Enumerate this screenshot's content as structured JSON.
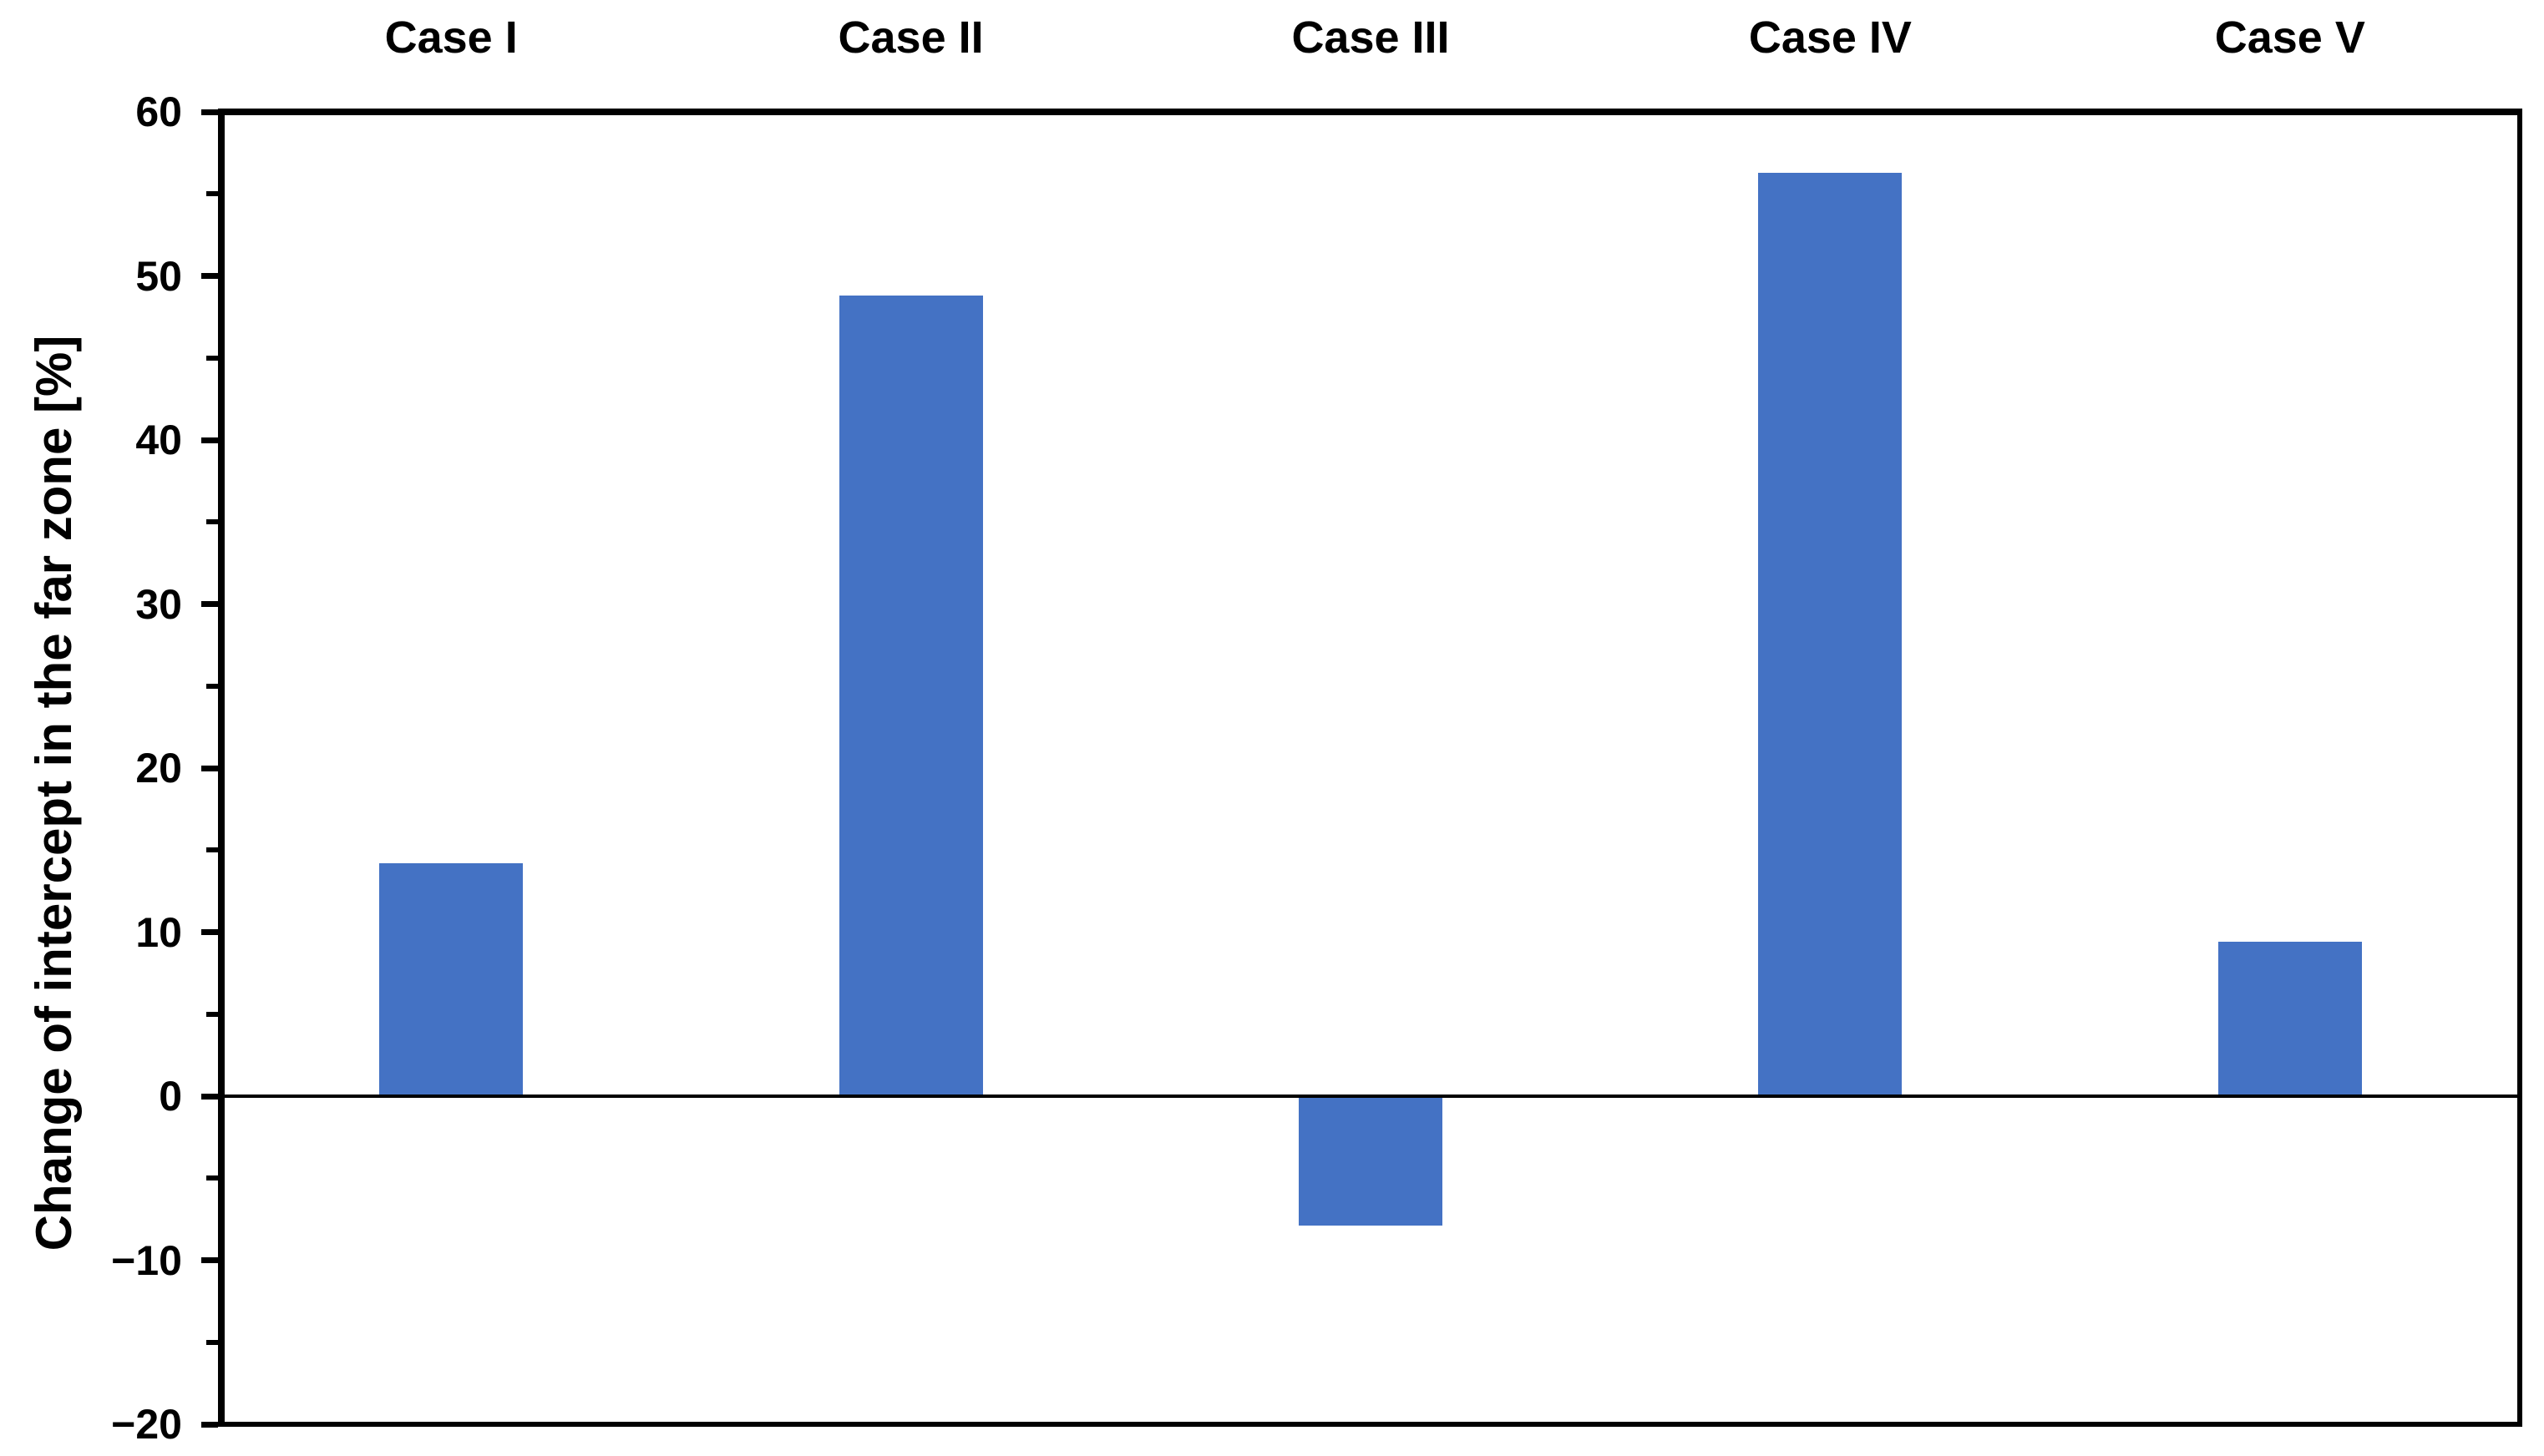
{
  "chart_data": {
    "type": "bar",
    "title": "",
    "xlabel": "",
    "ylabel": "Change of intercept in the far zone [%]",
    "categories": [
      "Case I",
      "Case II",
      "Case III",
      "Case IV",
      "Case V"
    ],
    "values": [
      14.2,
      48.8,
      -7.9,
      56.3,
      9.4
    ],
    "ylim": [
      -20,
      60
    ],
    "ytick_step": 10,
    "minor_tick_step": 5,
    "ytick_labels": [
      "60",
      "50",
      "40",
      "30",
      "20",
      "10",
      "0",
      "−10",
      "−20"
    ],
    "category_label_position": "top",
    "grid": false,
    "legend_position": "none",
    "bar_color": "#4472C4",
    "axis_color": "#000000",
    "text_color": "#000000",
    "background_color": "#FFFFFF"
  }
}
